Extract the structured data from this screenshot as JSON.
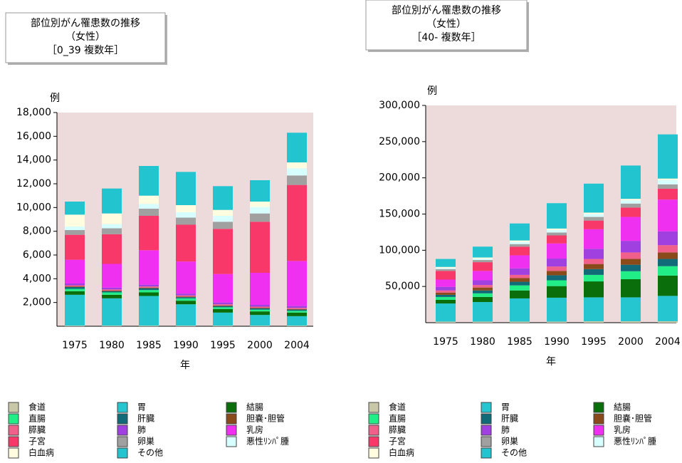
{
  "chart_data": [
    {
      "type": "stacked_bar",
      "title": "部位別がん罹患数の推移",
      "subtitle": "（女性）",
      "period": "［0_39 複数年］",
      "ylabel": "例",
      "xlabel": "年",
      "categories": [
        "1975",
        "1980",
        "1985",
        "1990",
        "1995",
        "2000",
        "2004"
      ],
      "ylim": [
        0,
        18000
      ],
      "yticks": [
        {
          "value": 2000,
          "label": "2,000"
        },
        {
          "value": 4000,
          "label": "4,000"
        },
        {
          "value": 6000,
          "label": "6,000"
        },
        {
          "value": 8000,
          "label": "8,000"
        },
        {
          "value": 10000,
          "label": "10,000"
        },
        {
          "value": 12000,
          "label": "12,000"
        },
        {
          "value": 14000,
          "label": "14,000"
        },
        {
          "value": 16000,
          "label": "16,000"
        },
        {
          "value": 18000,
          "label": "18,000"
        }
      ],
      "series": [
        {
          "name": "食道",
          "color": "#c8c8a8",
          "values": [
            50,
            50,
            50,
            50,
            50,
            50,
            50
          ]
        },
        {
          "name": "胃",
          "color": "#26c6d0",
          "values": [
            2600,
            2300,
            2500,
            1800,
            1100,
            900,
            800
          ]
        },
        {
          "name": "結腸",
          "color": "#0a6e0a",
          "values": [
            300,
            300,
            300,
            300,
            300,
            300,
            300
          ]
        },
        {
          "name": "直腸",
          "color": "#22ee88",
          "values": [
            200,
            200,
            200,
            200,
            150,
            150,
            150
          ]
        },
        {
          "name": "肝臓",
          "color": "#106a78",
          "values": [
            150,
            100,
            150,
            100,
            100,
            100,
            100
          ]
        },
        {
          "name": "胆嚢･胆管",
          "color": "#8a4a1a",
          "values": [
            50,
            50,
            50,
            50,
            50,
            50,
            50
          ]
        },
        {
          "name": "膵臓",
          "color": "#f0608a",
          "values": [
            100,
            100,
            100,
            100,
            100,
            100,
            100
          ]
        },
        {
          "name": "肺",
          "color": "#a040e0",
          "values": [
            150,
            150,
            150,
            150,
            150,
            150,
            150
          ]
        },
        {
          "name": "乳房",
          "color": "#f030f0",
          "values": [
            2000,
            2000,
            2900,
            2700,
            2400,
            2700,
            3800
          ]
        },
        {
          "name": "子宮",
          "color": "#f83868",
          "values": [
            2100,
            2500,
            2900,
            3100,
            3800,
            4300,
            6400
          ]
        },
        {
          "name": "卵巣",
          "color": "#a0a0a0",
          "values": [
            400,
            500,
            600,
            600,
            600,
            700,
            800
          ]
        },
        {
          "name": "悪性ﾘﾝﾊﾟ腫",
          "color": "#d8ffff",
          "values": [
            300,
            350,
            400,
            450,
            500,
            550,
            600
          ]
        },
        {
          "name": "白血病",
          "color": "#fffce0",
          "values": [
            1000,
            900,
            700,
            600,
            500,
            450,
            500
          ]
        },
        {
          "name": "その他",
          "color": "#22c4d0",
          "values": [
            1100,
            2100,
            2500,
            2800,
            2000,
            1800,
            2500
          ]
        }
      ]
    },
    {
      "type": "stacked_bar",
      "title": "部位別がん罹患数の推移",
      "subtitle": "（女性）",
      "period": "［40- 複数年］",
      "ylabel": "例",
      "xlabel": "年",
      "categories": [
        "1975",
        "1980",
        "1985",
        "1990",
        "1995",
        "2000",
        "2004"
      ],
      "ylim": [
        0,
        300000
      ],
      "yticks": [
        {
          "value": 50000,
          "label": "50,000"
        },
        {
          "value": 100000,
          "label": "100,000"
        },
        {
          "value": 150000,
          "label": "150,000"
        },
        {
          "value": 200000,
          "label": "200,000"
        },
        {
          "value": 250000,
          "label": "250,000"
        },
        {
          "value": 300000,
          "label": "300,000"
        }
      ],
      "series": [
        {
          "name": "食道",
          "color": "#c8c8a8",
          "values": [
            1500,
            1500,
            1500,
            1500,
            2000,
            2000,
            2000
          ]
        },
        {
          "name": "胃",
          "color": "#26c6d0",
          "values": [
            25000,
            27000,
            32000,
            33000,
            33000,
            33000,
            35000
          ]
        },
        {
          "name": "結腸",
          "color": "#0a6e0a",
          "values": [
            5000,
            7000,
            11000,
            16000,
            22000,
            25000,
            28000
          ]
        },
        {
          "name": "直腸",
          "color": "#22ee88",
          "values": [
            4000,
            5000,
            7000,
            8000,
            9000,
            11000,
            13000
          ]
        },
        {
          "name": "肝臓",
          "color": "#106a78",
          "values": [
            3000,
            4000,
            5000,
            7000,
            8000,
            9000,
            10000
          ]
        },
        {
          "name": "胆嚢･胆管",
          "color": "#8a4a1a",
          "values": [
            3000,
            4000,
            5000,
            6000,
            7000,
            8000,
            9000
          ]
        },
        {
          "name": "膵臓",
          "color": "#f0608a",
          "values": [
            3000,
            3500,
            4500,
            6000,
            7000,
            9000,
            10000
          ]
        },
        {
          "name": "肺",
          "color": "#a040e0",
          "values": [
            5000,
            6500,
            9000,
            11000,
            14000,
            16000,
            19000
          ]
        },
        {
          "name": "乳房",
          "color": "#f030f0",
          "values": [
            10000,
            13000,
            18000,
            21000,
            27000,
            33000,
            44000
          ]
        },
        {
          "name": "子宮",
          "color": "#f83868",
          "values": [
            12000,
            12000,
            12000,
            11000,
            12000,
            13000,
            15000
          ]
        },
        {
          "name": "卵巣",
          "color": "#a0a0a0",
          "values": [
            2500,
            3000,
            3500,
            4000,
            5000,
            5500,
            6000
          ]
        },
        {
          "name": "悪性ﾘﾝﾊﾟ腫",
          "color": "#d8ffff",
          "values": [
            1500,
            2000,
            3000,
            3500,
            4000,
            4500,
            6000
          ]
        },
        {
          "name": "白血病",
          "color": "#fffce0",
          "values": [
            1500,
            1500,
            2000,
            2000,
            2000,
            2000,
            2000
          ]
        },
        {
          "name": "その他",
          "color": "#22c4d0",
          "values": [
            11000,
            15000,
            23500,
            35000,
            40000,
            46000,
            61000
          ]
        }
      ]
    }
  ]
}
